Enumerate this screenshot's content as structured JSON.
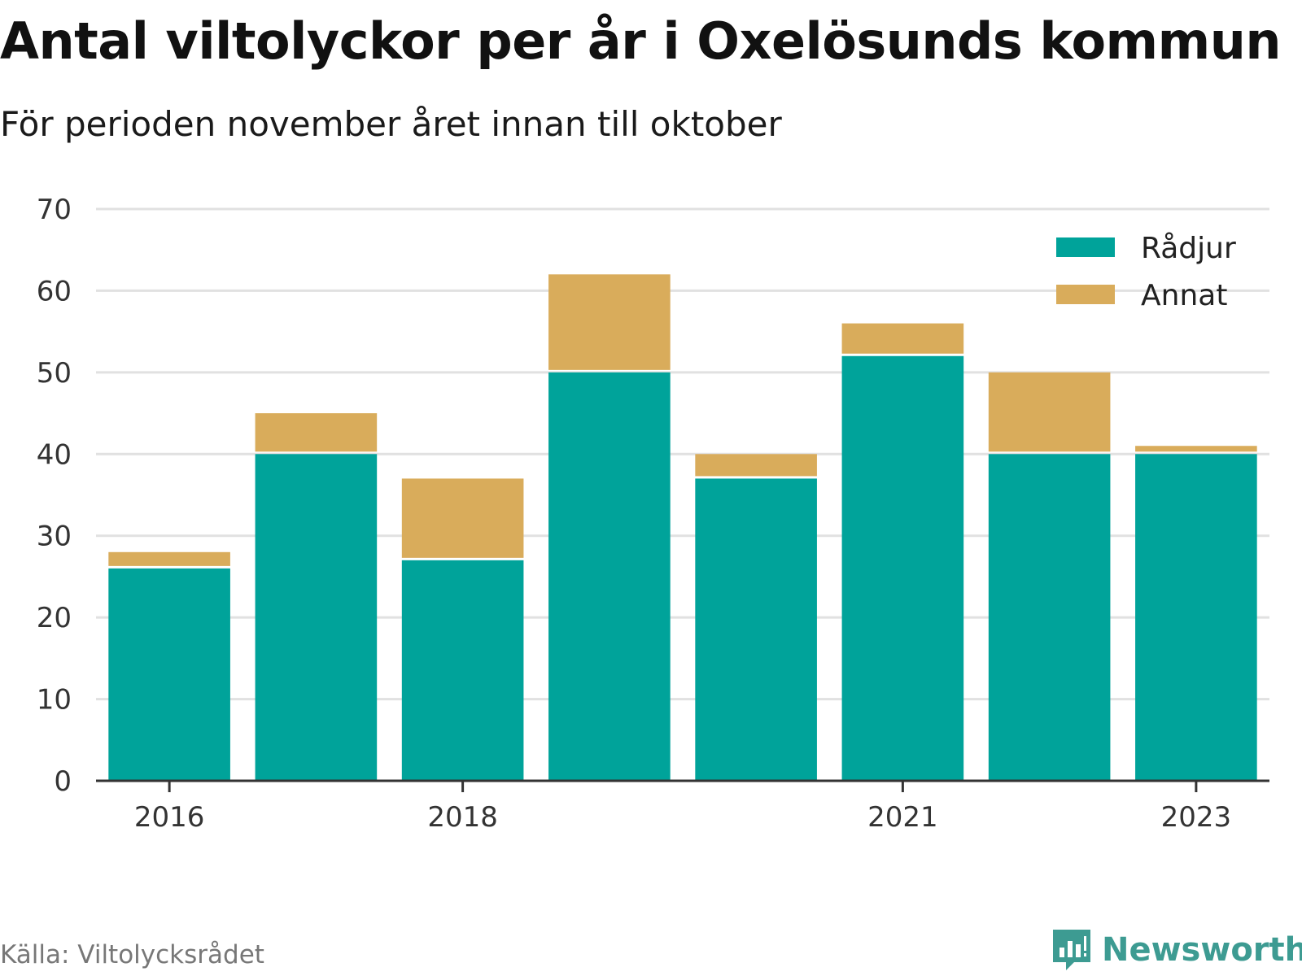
{
  "title": "Antal viltolyckor per år i Oxelösunds kommun",
  "subtitle": "För perioden november året innan till oktober",
  "source": "Källa: Viltolycksrådet",
  "brand": {
    "name": "Newsworthy",
    "icon": "newsworthy-chart-icon",
    "color": "#3d9b92"
  },
  "colors": {
    "Rådjur": "#00a39a",
    "Annat": "#d9ac5b",
    "grid": "#e1e1e1",
    "axis": "#333333"
  },
  "chart_data": {
    "type": "bar",
    "stacked": true,
    "categories": [
      "2016",
      "2017",
      "2018",
      "2019",
      "2020",
      "2021",
      "2022",
      "2023"
    ],
    "x_tick_labels": [
      "2016",
      "2018",
      "2021",
      "2023"
    ],
    "series": [
      {
        "name": "Rådjur",
        "values": [
          26,
          40,
          27,
          50,
          37,
          52,
          40,
          40
        ]
      },
      {
        "name": "Annat",
        "values": [
          2,
          5,
          10,
          12,
          3,
          4,
          10,
          1
        ]
      }
    ],
    "ylim": [
      0,
      70
    ],
    "yticks": [
      "0",
      "10",
      "20",
      "30",
      "40",
      "50",
      "60",
      "70"
    ],
    "grid": true,
    "legend": "top-right"
  }
}
